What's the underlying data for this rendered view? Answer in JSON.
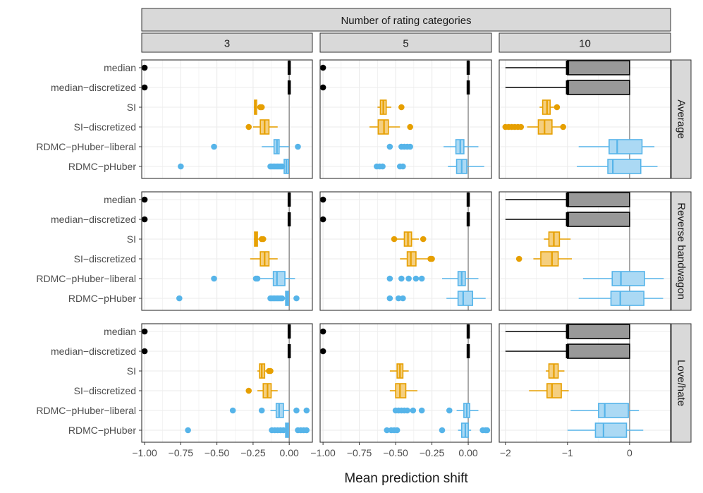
{
  "chart_data": {
    "type": "boxplot",
    "facet_top_title": "Number of rating categories",
    "facet_columns": [
      "3",
      "5",
      "10"
    ],
    "facet_rows": [
      "Average",
      "Reverse bandwagon",
      "Love/hate"
    ],
    "methods": [
      "median",
      "median−discretized",
      "SI",
      "SI−discretized",
      "RDMC−pHuber−liberal",
      "RDMC−pHuber"
    ],
    "xlabel": "Mean prediction shift",
    "reference_line": 0,
    "axes": [
      {
        "xlim": [
          -1.02,
          0.16
        ],
        "ticks": [
          -1.0,
          -0.75,
          -0.5,
          -0.25,
          0.0
        ],
        "tick_labels": [
          "−1.00",
          "−0.75",
          "−0.50",
          "−0.25",
          "0.00"
        ]
      },
      {
        "xlim": [
          -1.02,
          0.16
        ],
        "ticks": [
          -1.0,
          -0.75,
          -0.5,
          -0.25,
          0.0
        ],
        "tick_labels": [
          "−1.00",
          "−0.75",
          "−0.50",
          "−0.25",
          "0.00"
        ]
      },
      {
        "xlim": [
          -2.1,
          0.66
        ],
        "ticks": [
          -2,
          -1,
          0
        ],
        "tick_labels": [
          "−2",
          "−1",
          "0"
        ]
      }
    ],
    "colors": {
      "median": "#000000",
      "SI": "#E69F00",
      "RDMC": "#56B4E9",
      "median_fill_10": "#999999",
      "SI_fill": "#F5CF7F",
      "RDMC_fill": "#ABD9F4",
      "strip": "#D9D9D9",
      "grid": "#EBEBEB",
      "refline": "#999999"
    },
    "panels": [
      [
        {
          "boxes": [
            {
              "q1": 0,
              "med": 0,
              "q3": 0,
              "lo": 0,
              "hi": 0,
              "out": [
                -1.0
              ]
            },
            {
              "q1": 0,
              "med": 0,
              "q3": 0,
              "lo": 0,
              "hi": 0,
              "out": [
                -1.0
              ]
            },
            {
              "q1": -0.24,
              "med": -0.235,
              "q3": -0.225,
              "lo": -0.245,
              "hi": -0.215,
              "out": [
                -0.2,
                -0.19
              ]
            },
            {
              "q1": -0.2,
              "med": -0.17,
              "q3": -0.14,
              "lo": -0.25,
              "hi": -0.08,
              "out": [
                -0.28
              ]
            },
            {
              "q1": -0.105,
              "med": -0.085,
              "q3": -0.07,
              "lo": -0.19,
              "hi": 0.0,
              "out": [
                -0.52,
                0.06
              ]
            },
            {
              "q1": -0.035,
              "med": -0.02,
              "q3": -0.005,
              "lo": -0.04,
              "hi": 0.0,
              "out": [
                -0.75,
                -0.13,
                -0.12,
                -0.11,
                -0.1,
                -0.09,
                -0.08,
                -0.07,
                -0.06,
                -0.05
              ]
            }
          ]
        },
        {
          "boxes": [
            {
              "q1": 0,
              "med": 0,
              "q3": 0,
              "lo": 0,
              "hi": 0,
              "out": [
                -1.0
              ]
            },
            {
              "q1": 0,
              "med": 0,
              "q3": 0,
              "lo": 0,
              "hi": 0,
              "out": [
                -1.0
              ]
            },
            {
              "q1": -0.605,
              "med": -0.585,
              "q3": -0.565,
              "lo": -0.625,
              "hi": -0.53,
              "out": [
                -0.46
              ]
            },
            {
              "q1": -0.62,
              "med": -0.58,
              "q3": -0.55,
              "lo": -0.68,
              "hi": -0.47,
              "out": [
                -0.4
              ]
            },
            {
              "q1": -0.085,
              "med": -0.055,
              "q3": -0.03,
              "lo": -0.17,
              "hi": 0.07,
              "out": [
                -0.54,
                -0.46,
                -0.44,
                -0.42,
                -0.4
              ]
            },
            {
              "q1": -0.08,
              "med": -0.045,
              "q3": -0.01,
              "lo": -0.14,
              "hi": 0.11,
              "out": [
                -0.63,
                -0.61,
                -0.59,
                -0.47,
                -0.45
              ]
            }
          ]
        },
        {
          "boxes": [
            {
              "q1": -1,
              "med": -1,
              "q3": 0,
              "lo": -2,
              "hi": 0,
              "out": []
            },
            {
              "q1": -1,
              "med": -1,
              "q3": 0,
              "lo": -2,
              "hi": 0,
              "out": []
            },
            {
              "q1": -1.4,
              "med": -1.33,
              "q3": -1.28,
              "lo": -1.45,
              "hi": -1.22,
              "out": [
                -1.17
              ]
            },
            {
              "q1": -1.47,
              "med": -1.37,
              "q3": -1.25,
              "lo": -1.65,
              "hi": -1.07,
              "out": [
                -2.0,
                -1.95,
                -1.9,
                -1.85,
                -1.8,
                -1.75,
                -1.07
              ]
            },
            {
              "q1": -0.33,
              "med": -0.2,
              "q3": 0.2,
              "lo": -0.82,
              "hi": 0.4,
              "out": []
            },
            {
              "q1": -0.35,
              "med": -0.27,
              "q3": 0.18,
              "lo": -0.85,
              "hi": 0.45,
              "out": []
            }
          ]
        }
      ],
      [
        {
          "boxes": [
            {
              "q1": 0,
              "med": 0,
              "q3": 0,
              "lo": 0,
              "hi": 0,
              "out": [
                -1.0
              ]
            },
            {
              "q1": 0,
              "med": 0,
              "q3": 0,
              "lo": 0,
              "hi": 0,
              "out": [
                -1.0
              ]
            },
            {
              "q1": -0.24,
              "med": -0.23,
              "q3": -0.22,
              "lo": -0.245,
              "hi": -0.21,
              "out": [
                -0.19,
                -0.18
              ]
            },
            {
              "q1": -0.2,
              "med": -0.17,
              "q3": -0.14,
              "lo": -0.27,
              "hi": -0.08,
              "out": []
            },
            {
              "q1": -0.11,
              "med": -0.085,
              "q3": -0.03,
              "lo": -0.2,
              "hi": 0.04,
              "out": [
                -0.52,
                -0.23,
                -0.22
              ]
            },
            {
              "q1": -0.025,
              "med": -0.015,
              "q3": -0.005,
              "lo": -0.04,
              "hi": 0.0,
              "out": [
                -0.76,
                -0.13,
                -0.12,
                -0.11,
                -0.1,
                -0.09,
                -0.08,
                -0.07,
                -0.06,
                -0.05,
                0.05
              ]
            }
          ]
        },
        {
          "boxes": [
            {
              "q1": 0,
              "med": 0,
              "q3": 0,
              "lo": 0,
              "hi": 0,
              "out": [
                -1.0
              ]
            },
            {
              "q1": 0,
              "med": 0,
              "q3": 0,
              "lo": 0,
              "hi": 0,
              "out": [
                -1.0
              ]
            },
            {
              "q1": -0.44,
              "med": -0.415,
              "q3": -0.39,
              "lo": -0.5,
              "hi": -0.34,
              "out": [
                -0.51,
                -0.31
              ]
            },
            {
              "q1": -0.42,
              "med": -0.395,
              "q3": -0.36,
              "lo": -0.47,
              "hi": -0.28,
              "out": [
                -0.26,
                -0.25
              ]
            },
            {
              "q1": -0.07,
              "med": -0.045,
              "q3": -0.02,
              "lo": -0.18,
              "hi": 0.07,
              "out": [
                -0.54,
                -0.46,
                -0.41,
                -0.36,
                -0.32
              ]
            },
            {
              "q1": -0.07,
              "med": -0.035,
              "q3": 0.03,
              "lo": -0.15,
              "hi": 0.12,
              "out": [
                -0.54,
                -0.48,
                -0.45
              ]
            }
          ]
        },
        {
          "boxes": [
            {
              "q1": -1,
              "med": -1,
              "q3": 0,
              "lo": -2,
              "hi": 0,
              "out": []
            },
            {
              "q1": -1,
              "med": -1,
              "q3": 0,
              "lo": -2,
              "hi": 0,
              "out": []
            },
            {
              "q1": -1.3,
              "med": -1.22,
              "q3": -1.13,
              "lo": -1.38,
              "hi": -0.95,
              "out": []
            },
            {
              "q1": -1.43,
              "med": -1.25,
              "q3": -1.15,
              "lo": -1.55,
              "hi": -0.93,
              "out": [
                -1.78
              ]
            },
            {
              "q1": -0.28,
              "med": -0.14,
              "q3": 0.24,
              "lo": -0.75,
              "hi": 0.55,
              "out": []
            },
            {
              "q1": -0.3,
              "med": -0.15,
              "q3": 0.23,
              "lo": -0.82,
              "hi": 0.54,
              "out": []
            }
          ]
        }
      ],
      [
        {
          "boxes": [
            {
              "q1": 0,
              "med": 0,
              "q3": 0,
              "lo": 0,
              "hi": 0,
              "out": [
                -1.0
              ]
            },
            {
              "q1": 0,
              "med": 0,
              "q3": 0,
              "lo": 0,
              "hi": 0,
              "out": [
                -1.0
              ]
            },
            {
              "q1": -0.205,
              "med": -0.19,
              "q3": -0.17,
              "lo": -0.22,
              "hi": -0.15,
              "out": [
                -0.14,
                -0.13
              ]
            },
            {
              "q1": -0.18,
              "med": -0.15,
              "q3": -0.125,
              "lo": -0.22,
              "hi": -0.08,
              "out": [
                -0.28
              ]
            },
            {
              "q1": -0.09,
              "med": -0.07,
              "q3": -0.04,
              "lo": -0.13,
              "hi": 0.0,
              "out": [
                -0.39,
                -0.19,
                0.05,
                0.12
              ]
            },
            {
              "q1": -0.025,
              "med": -0.015,
              "q3": -0.005,
              "lo": -0.04,
              "hi": 0.0,
              "out": [
                -0.7,
                -0.12,
                -0.1,
                -0.08,
                -0.06,
                -0.04,
                0.06,
                0.08,
                0.1,
                0.12
              ]
            }
          ]
        },
        {
          "boxes": [
            {
              "q1": 0,
              "med": 0,
              "q3": 0,
              "lo": 0,
              "hi": 0,
              "out": [
                -1.0
              ]
            },
            {
              "q1": 0,
              "med": 0,
              "q3": 0,
              "lo": 0,
              "hi": 0,
              "out": [
                -1.0
              ]
            },
            {
              "q1": -0.49,
              "med": -0.47,
              "q3": -0.45,
              "lo": -0.54,
              "hi": -0.41,
              "out": []
            },
            {
              "q1": -0.5,
              "med": -0.47,
              "q3": -0.43,
              "lo": -0.54,
              "hi": -0.35,
              "out": []
            },
            {
              "q1": -0.03,
              "med": -0.01,
              "q3": 0.01,
              "lo": -0.08,
              "hi": 0.07,
              "out": [
                -0.5,
                -0.48,
                -0.46,
                -0.44,
                -0.42,
                -0.38,
                -0.32,
                -0.13
              ]
            },
            {
              "q1": -0.045,
              "med": -0.02,
              "q3": 0.0,
              "lo": -0.07,
              "hi": 0.02,
              "out": [
                -0.56,
                -0.53,
                -0.51,
                -0.49,
                -0.18,
                0.1,
                0.12,
                0.13
              ]
            }
          ]
        },
        {
          "boxes": [
            {
              "q1": -1,
              "med": -1,
              "q3": 0,
              "lo": -2,
              "hi": 0,
              "out": []
            },
            {
              "q1": -1,
              "med": -1,
              "q3": 0,
              "lo": -2,
              "hi": 0,
              "out": []
            },
            {
              "q1": -1.3,
              "med": -1.22,
              "q3": -1.15,
              "lo": -1.35,
              "hi": -1.05,
              "out": []
            },
            {
              "q1": -1.33,
              "med": -1.25,
              "q3": -1.1,
              "lo": -1.62,
              "hi": -0.98,
              "out": []
            },
            {
              "q1": -0.5,
              "med": -0.4,
              "q3": -0.02,
              "lo": -0.95,
              "hi": 0.15,
              "out": []
            },
            {
              "q1": -0.55,
              "med": -0.42,
              "q3": -0.05,
              "lo": -1.0,
              "hi": 0.22,
              "out": []
            }
          ]
        }
      ]
    ]
  }
}
